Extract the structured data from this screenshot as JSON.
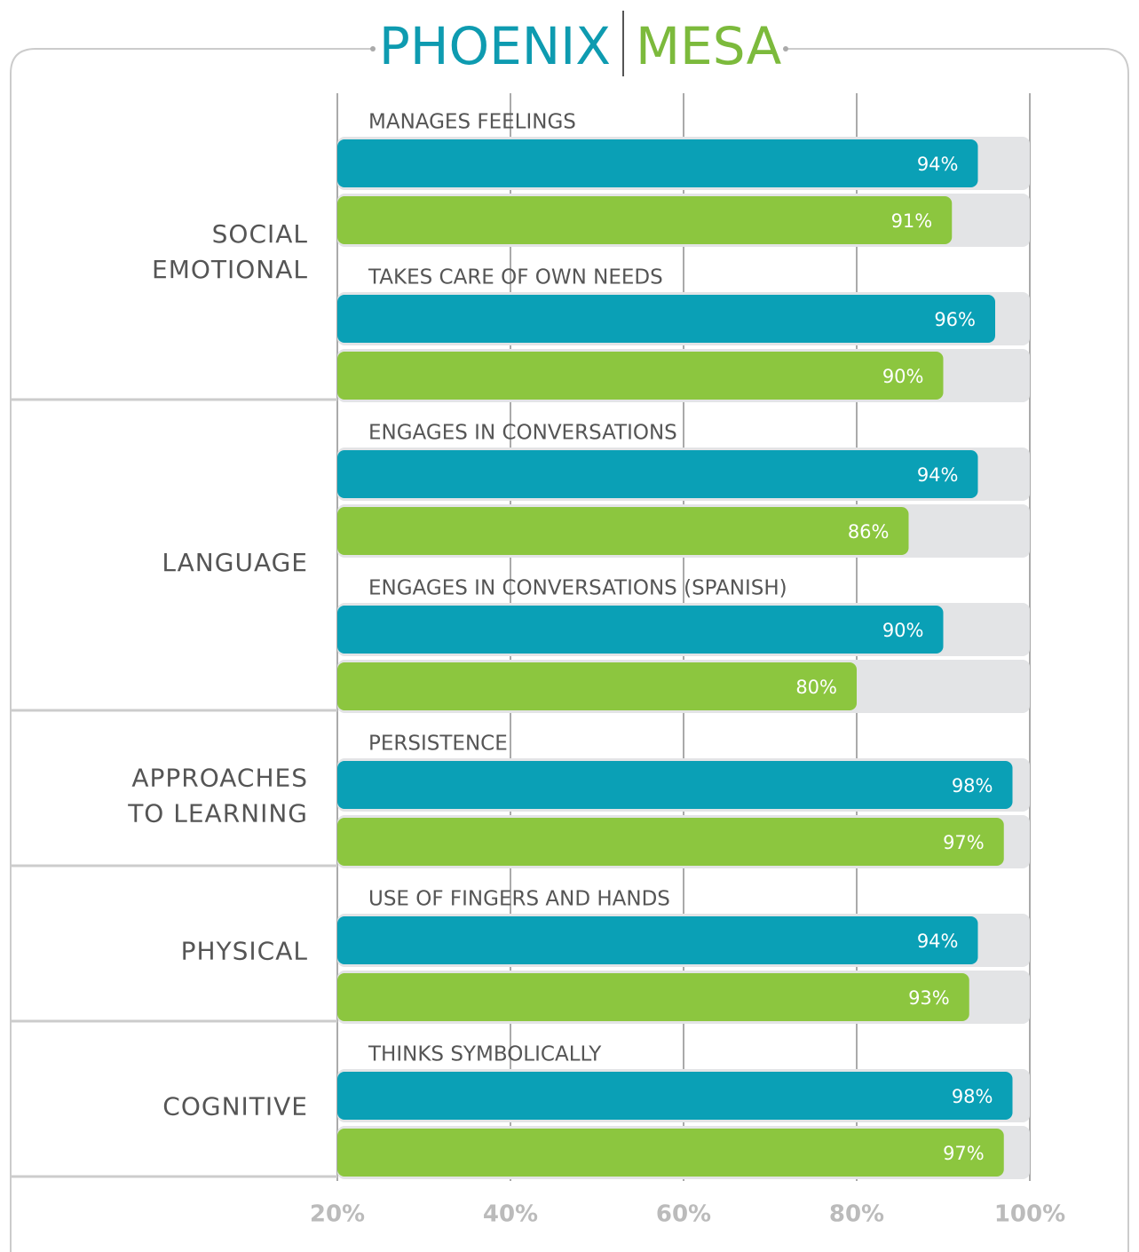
{
  "chart_data": {
    "type": "bar",
    "orientation": "horizontal",
    "title": [
      {
        "text": "PHOENIX",
        "color": "#0e9bb0"
      },
      {
        "text": "MESA",
        "color": "#7cba3c"
      }
    ],
    "groups": [
      {
        "label": [
          "SOCIAL",
          "EMOTIONAL"
        ],
        "categories": [
          "MANAGES FEELINGS",
          "TAKES CARE OF OWN NEEDS"
        ]
      },
      {
        "label": [
          "LANGUAGE"
        ],
        "categories": [
          "ENGAGES IN CONVERSATIONS",
          "ENGAGES IN CONVERSATIONS (SPANISH)"
        ]
      },
      {
        "label": [
          "APPROACHES",
          "TO LEARNING"
        ],
        "categories": [
          "PERSISTENCE"
        ]
      },
      {
        "label": [
          "PHYSICAL"
        ],
        "categories": [
          "USE OF FINGERS AND HANDS"
        ]
      },
      {
        "label": [
          "COGNITIVE"
        ],
        "categories": [
          "THINKS SYMBOLICALLY"
        ]
      }
    ],
    "series": [
      {
        "name": "PHOENIX",
        "color": "#0aa0b6",
        "values": [
          94,
          96,
          94,
          90,
          98,
          94,
          98
        ],
        "value_labels": [
          "94%",
          "96%",
          "94%",
          "90%",
          "98%",
          "94%",
          "98%"
        ]
      },
      {
        "name": "MESA",
        "color": "#8cc63f",
        "values": [
          91,
          90,
          86,
          80,
          97,
          93,
          97
        ],
        "value_labels": [
          "91%",
          "90%",
          "86%",
          "80%",
          "97%",
          "93%",
          "97%"
        ]
      }
    ],
    "xlim": [
      20,
      100
    ],
    "xticks": [
      {
        "value": 20,
        "label": "20%"
      },
      {
        "value": 40,
        "label": "40%"
      },
      {
        "value": 60,
        "label": "60%"
      },
      {
        "value": 80,
        "label": "80%"
      },
      {
        "value": 100,
        "label": "100%"
      }
    ],
    "grid": true
  }
}
